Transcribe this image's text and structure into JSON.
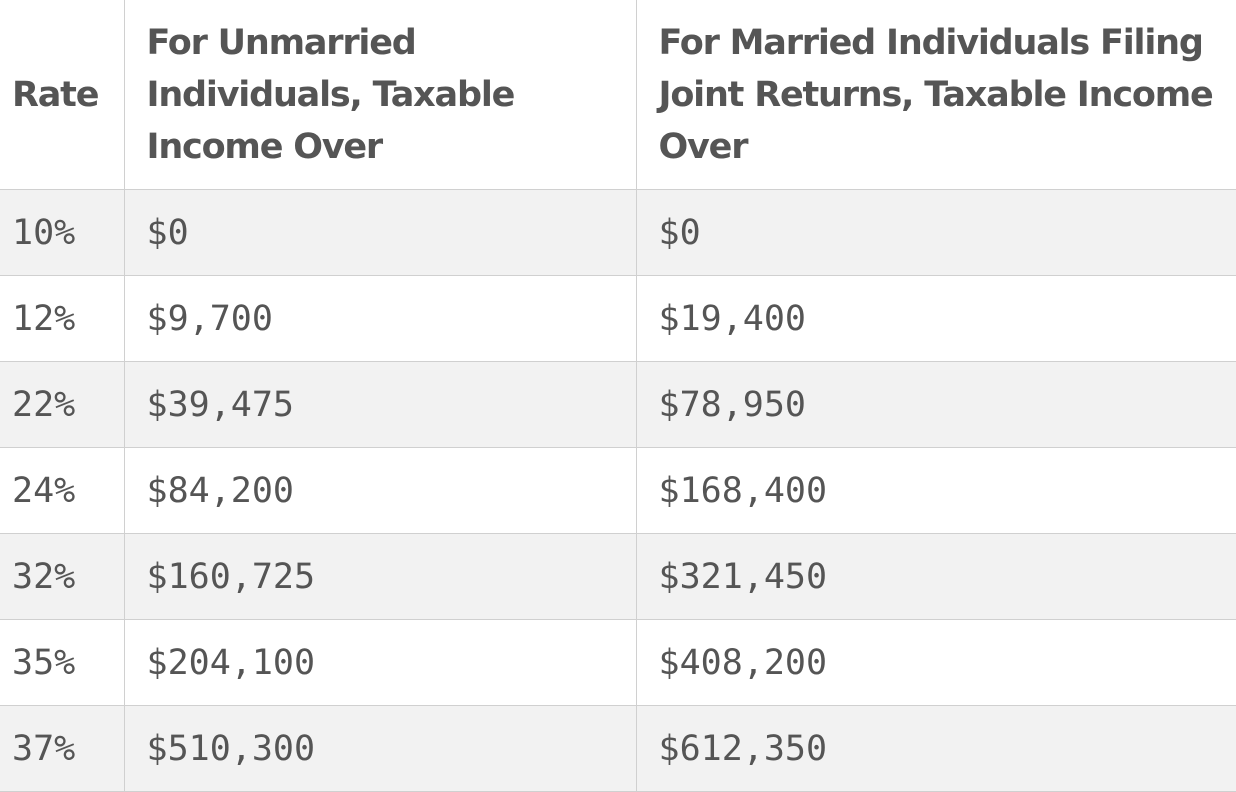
{
  "table": {
    "header": [
      [
        "Rate"
      ],
      [
        "For Unmarried",
        "Individuals, Taxable",
        "Income Over"
      ],
      [
        "For Married Individuals Filing",
        "Joint Returns, Taxable Income",
        "Over"
      ]
    ],
    "rows": [
      [
        "10%",
        "$0",
        "$0"
      ],
      [
        "12%",
        "$9,700",
        "$19,400"
      ],
      [
        "22%",
        "$39,475",
        "$78,950"
      ],
      [
        "24%",
        "$84,200",
        "$168,400"
      ],
      [
        "32%",
        "$160,725",
        "$321,450"
      ],
      [
        "35%",
        "$204,100",
        "$408,200"
      ],
      [
        "37%",
        "$510,300",
        "$612,350"
      ]
    ]
  }
}
